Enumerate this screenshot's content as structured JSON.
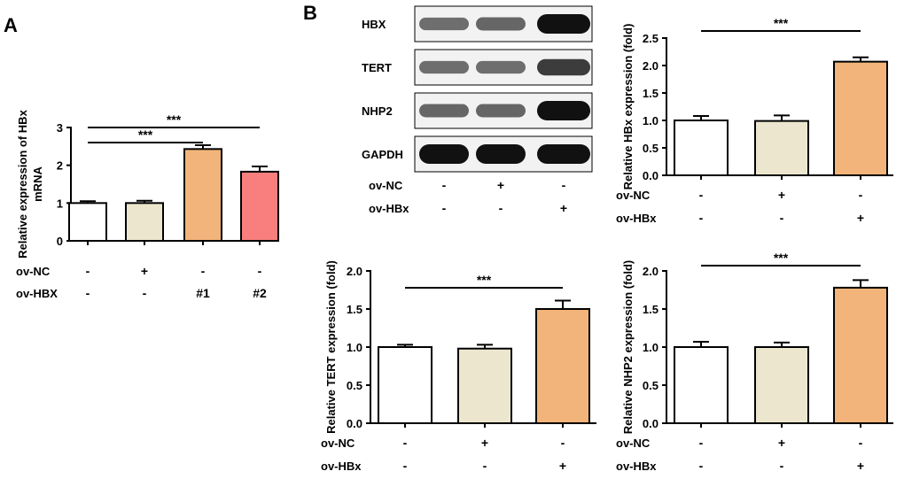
{
  "panel_labels": {
    "a": "A",
    "b": "B"
  },
  "colors": {
    "white": "#ffffff",
    "beige": "#ece6cf",
    "orange": "#f2b47a",
    "pink": "#f97f7f",
    "band": "#111111"
  },
  "blot": {
    "rows": [
      "HBX",
      "TERT",
      "NHP2",
      "GAPDH"
    ],
    "band_intensity": [
      [
        0.45,
        0.5,
        1.0
      ],
      [
        0.45,
        0.45,
        0.75
      ],
      [
        0.5,
        0.5,
        1.0
      ],
      [
        1.0,
        1.0,
        1.0
      ]
    ],
    "conditions": [
      {
        "label": "ov-NC",
        "signs": [
          "-",
          "+",
          "-"
        ]
      },
      {
        "label": "ov-HBx",
        "signs": [
          "-",
          "-",
          "+"
        ]
      }
    ]
  },
  "chart_data": [
    {
      "id": "chartA",
      "type": "bar",
      "ylabel": "Relative expression of HBx mRNA",
      "ylabel_lines": [
        "Relative expression of HBx",
        "mRNA"
      ],
      "ylim": [
        0,
        3
      ],
      "yticks": [
        "0",
        "1",
        "2",
        "3"
      ],
      "values": [
        1.0,
        1.0,
        2.43,
        1.83
      ],
      "errors": [
        0.05,
        0.06,
        0.1,
        0.14
      ],
      "colors": [
        "#ffffff",
        "#ece6cf",
        "#f2b47a",
        "#f97f7f"
      ],
      "conditions": [
        {
          "label": "ov-NC",
          "signs": [
            "-",
            "+",
            "-",
            "-"
          ]
        },
        {
          "label": "ov-HBX",
          "signs": [
            "-",
            "-",
            "#1",
            "#2"
          ]
        }
      ],
      "significance": [
        {
          "from": 0,
          "to": 2,
          "label": "***"
        },
        {
          "from": 0,
          "to": 3,
          "label": "***"
        }
      ]
    },
    {
      "id": "chartB1",
      "type": "bar",
      "ylabel": "Relative HBx expression  (fold)",
      "ylabel_lines": [
        "Relative HBx expression  (fold)"
      ],
      "ylim": [
        0,
        2.5
      ],
      "yticks": [
        "0.0",
        "0.5",
        "1.0",
        "1.5",
        "2.0",
        "2.5"
      ],
      "values": [
        1.0,
        0.99,
        2.07
      ],
      "errors": [
        0.08,
        0.1,
        0.08
      ],
      "colors": [
        "#ffffff",
        "#ece6cf",
        "#f2b47a"
      ],
      "conditions": [
        {
          "label": "ov-NC",
          "signs": [
            "-",
            "+",
            "-"
          ]
        },
        {
          "label": "ov-HBx",
          "signs": [
            "-",
            "-",
            "+"
          ]
        }
      ],
      "significance": [
        {
          "from": 0,
          "to": 2,
          "label": "***"
        }
      ]
    },
    {
      "id": "chartB2",
      "type": "bar",
      "ylabel": "Relative TERT expression (fold)",
      "ylabel_lines": [
        "Relative TERT expression (fold)"
      ],
      "ylim": [
        0,
        2.0
      ],
      "yticks": [
        "0.0",
        "0.5",
        "1.0",
        "1.5",
        "2.0"
      ],
      "values": [
        1.0,
        0.98,
        1.5
      ],
      "errors": [
        0.03,
        0.05,
        0.11
      ],
      "colors": [
        "#ffffff",
        "#ece6cf",
        "#f2b47a"
      ],
      "conditions": [
        {
          "label": "ov-NC",
          "signs": [
            "-",
            "+",
            "-"
          ]
        },
        {
          "label": "ov-HBx",
          "signs": [
            "-",
            "-",
            "+"
          ]
        }
      ],
      "significance": [
        {
          "from": 0,
          "to": 2,
          "label": "***"
        }
      ]
    },
    {
      "id": "chartB3",
      "type": "bar",
      "ylabel": "Relative NHP2 expression (fold)",
      "ylabel_lines": [
        "Relative NHP2 expression (fold)"
      ],
      "ylim": [
        0,
        2.0
      ],
      "yticks": [
        "0.0",
        "0.5",
        "1.0",
        "1.5",
        "2.0"
      ],
      "values": [
        1.0,
        1.0,
        1.78
      ],
      "errors": [
        0.07,
        0.06,
        0.1
      ],
      "colors": [
        "#ffffff",
        "#ece6cf",
        "#f2b47a"
      ],
      "conditions": [
        {
          "label": "ov-NC",
          "signs": [
            "-",
            "+",
            "-"
          ]
        },
        {
          "label": "ov-HBx",
          "signs": [
            "-",
            "-",
            "+"
          ]
        }
      ],
      "significance": [
        {
          "from": 0,
          "to": 2,
          "label": "***"
        }
      ]
    }
  ]
}
